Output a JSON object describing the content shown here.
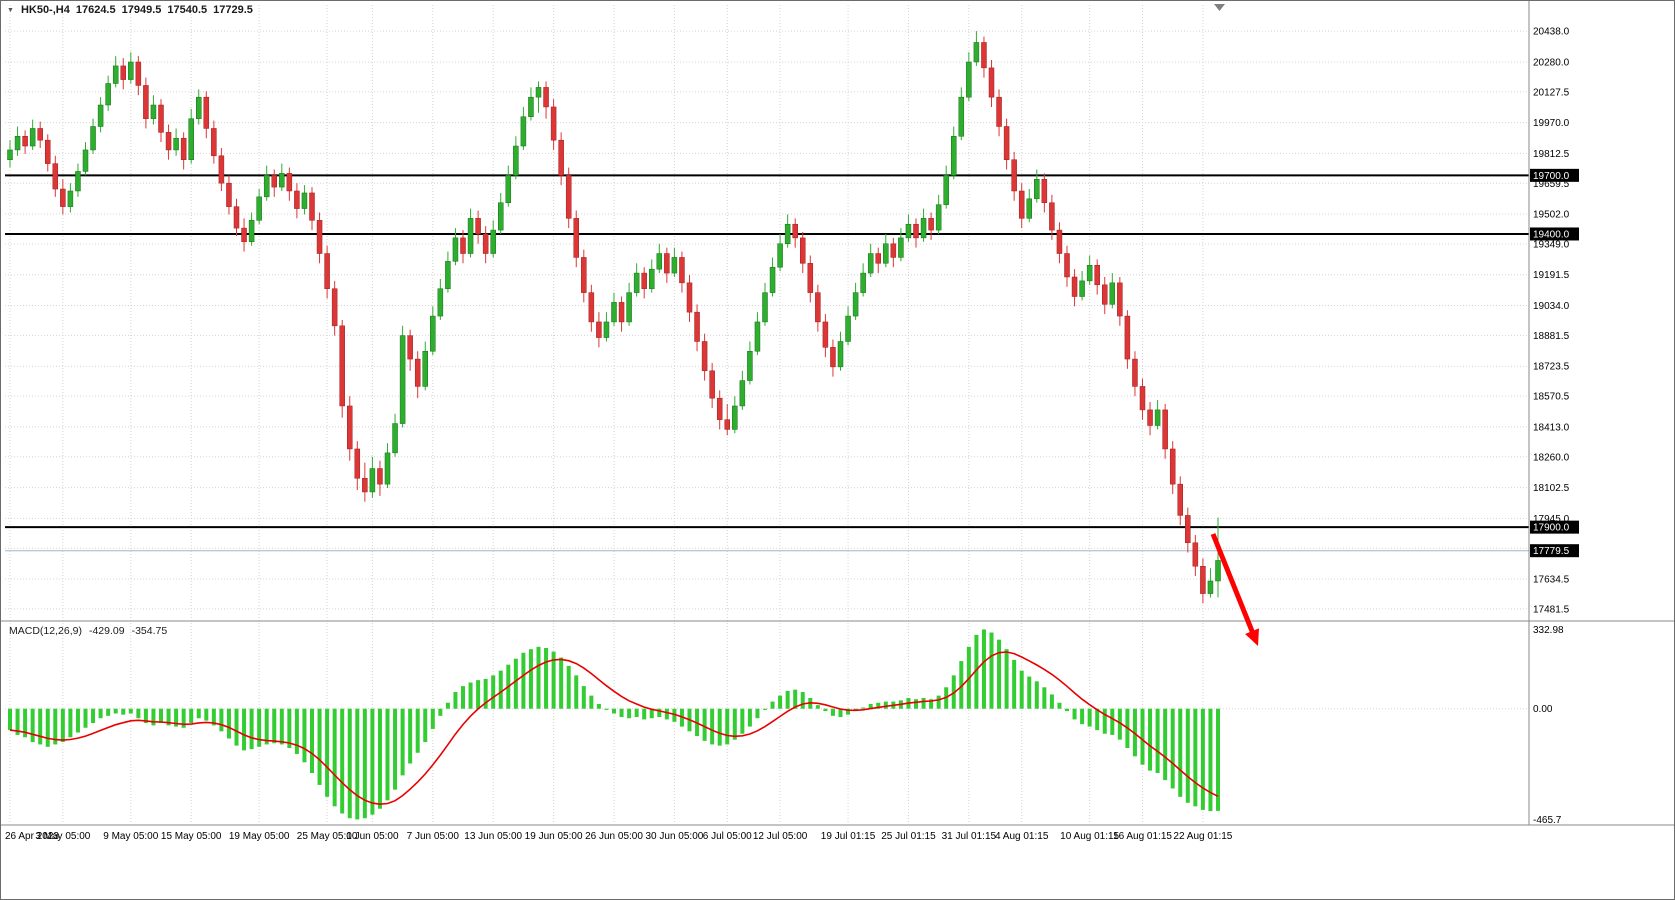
{
  "quote_bar": {
    "collapse_icon": "▼",
    "symbol": "HK50-,H4",
    "open": "17624.5",
    "high": "17949.5",
    "low": "17540.5",
    "close": "17729.5"
  },
  "macd_panel_label": {
    "name": "MACD(12,26,9)",
    "macd_value": "-429.09",
    "signal_value": "-354.75"
  },
  "colors": {
    "bull": "#2eae2e",
    "bear": "#dd3636",
    "bull_stroke": "#176e17",
    "bear_stroke": "#9c1f1f",
    "hline": "#000000",
    "bid_line": "#9fb6cc",
    "grid": "#d4d4d4",
    "macd_hist": "#33cc33",
    "macd_signal": "#e80000",
    "tag_bg": "#000000",
    "tag_fg": "#ffffff",
    "axis_text": "#000000",
    "panel_border": "#8a8a8a",
    "arrow": "#ff0000",
    "shift_marker": "#808080"
  },
  "chart_data": {
    "type": "candlestick+macd",
    "title": "HK50-,H4",
    "price_ylim": [
      17430,
      20500
    ],
    "macd_ylim": [
      -480,
      360
    ],
    "price_axis_ticks": [
      20438.0,
      20280.0,
      20127.5,
      19970.0,
      19812.5,
      19659.5,
      19502.0,
      19349.0,
      19191.5,
      19034.0,
      18881.5,
      18723.5,
      18570.5,
      18413.0,
      18260.0,
      18102.5,
      17945.0,
      17792.0,
      17634.5,
      17481.5
    ],
    "hlines": [
      19700.0,
      19400.0,
      17900.0
    ],
    "bid_line": 17779.5,
    "macd_axis": [
      {
        "v": 332.98,
        "label": "332.98"
      },
      {
        "v": 0,
        "label": "0.00"
      },
      {
        "v": -465.7,
        "label": "-465.7"
      }
    ],
    "x_ticks": [
      {
        "i": 0,
        "label": "26 Apr 2023"
      },
      {
        "i": 7,
        "label": "3 May 05:00"
      },
      {
        "i": 16,
        "label": "9 May 05:00"
      },
      {
        "i": 24,
        "label": "15 May 05:00"
      },
      {
        "i": 33,
        "label": "19 May 05:00"
      },
      {
        "i": 42,
        "label": "25 May 05:00"
      },
      {
        "i": 48,
        "label": "1 Jun 05:00"
      },
      {
        "i": 56,
        "label": "7 Jun 05:00"
      },
      {
        "i": 64,
        "label": "13 Jun 05:00"
      },
      {
        "i": 72,
        "label": "19 Jun 05:00"
      },
      {
        "i": 80,
        "label": "26 Jun 05:00"
      },
      {
        "i": 88,
        "label": "30 Jun 05:00"
      },
      {
        "i": 95,
        "label": "6 Jul 05:00"
      },
      {
        "i": 102,
        "label": "12 Jul 05:00"
      },
      {
        "i": 111,
        "label": "19 Jul 01:15"
      },
      {
        "i": 119,
        "label": "25 Jul 01:15"
      },
      {
        "i": 127,
        "label": "31 Jul 01:15"
      },
      {
        "i": 134,
        "label": "4 Aug 01:15"
      },
      {
        "i": 143,
        "label": "10 Aug 01:15"
      },
      {
        "i": 150,
        "label": "16 Aug 01:15"
      },
      {
        "i": 158,
        "label": "22 Aug 01:15"
      }
    ],
    "candles": [
      [
        19780,
        19880,
        19740,
        19830
      ],
      [
        19830,
        19950,
        19800,
        19900
      ],
      [
        19900,
        19930,
        19810,
        19850
      ],
      [
        19850,
        19985,
        19830,
        19940
      ],
      [
        19940,
        19975,
        19840,
        19880
      ],
      [
        19880,
        19910,
        19720,
        19760
      ],
      [
        19760,
        19800,
        19590,
        19630
      ],
      [
        19630,
        19680,
        19500,
        19540
      ],
      [
        19540,
        19660,
        19510,
        19620
      ],
      [
        19620,
        19760,
        19590,
        19720
      ],
      [
        19720,
        19870,
        19700,
        19830
      ],
      [
        19830,
        19990,
        19810,
        19950
      ],
      [
        19950,
        20100,
        19920,
        20060
      ],
      [
        20060,
        20210,
        20030,
        20170
      ],
      [
        20170,
        20310,
        20150,
        20260
      ],
      [
        20260,
        20300,
        20140,
        20190
      ],
      [
        20190,
        20330,
        20170,
        20280
      ],
      [
        20280,
        20310,
        20110,
        20160
      ],
      [
        20160,
        20200,
        19940,
        19990
      ],
      [
        19990,
        20110,
        19960,
        20060
      ],
      [
        20060,
        20090,
        19870,
        19920
      ],
      [
        19920,
        19960,
        19780,
        19830
      ],
      [
        19830,
        19940,
        19800,
        19890
      ],
      [
        19890,
        19920,
        19730,
        19780
      ],
      [
        19780,
        20040,
        19760,
        19990
      ],
      [
        19990,
        20140,
        19960,
        20100
      ],
      [
        20100,
        20130,
        19890,
        19940
      ],
      [
        19940,
        19980,
        19760,
        19800
      ],
      [
        19800,
        19840,
        19620,
        19660
      ],
      [
        19660,
        19700,
        19500,
        19540
      ],
      [
        19540,
        19580,
        19390,
        19430
      ],
      [
        19430,
        19480,
        19310,
        19360
      ],
      [
        19360,
        19510,
        19340,
        19470
      ],
      [
        19470,
        19630,
        19450,
        19590
      ],
      [
        19590,
        19750,
        19570,
        19700
      ],
      [
        19700,
        19730,
        19590,
        19640
      ],
      [
        19640,
        19760,
        19620,
        19710
      ],
      [
        19710,
        19740,
        19570,
        19620
      ],
      [
        19620,
        19660,
        19480,
        19530
      ],
      [
        19530,
        19650,
        19500,
        19610
      ],
      [
        19610,
        19640,
        19420,
        19470
      ],
      [
        19470,
        19510,
        19250,
        19300
      ],
      [
        19300,
        19340,
        19070,
        19120
      ],
      [
        19120,
        19160,
        18880,
        18930
      ],
      [
        18930,
        18960,
        18460,
        18520
      ],
      [
        18520,
        18570,
        18240,
        18300
      ],
      [
        18300,
        18340,
        18090,
        18150
      ],
      [
        18150,
        18230,
        18030,
        18080
      ],
      [
        18080,
        18260,
        18050,
        18200
      ],
      [
        18200,
        18240,
        18060,
        18120
      ],
      [
        18120,
        18330,
        18100,
        18280
      ],
      [
        18280,
        18480,
        18260,
        18430
      ],
      [
        18430,
        18930,
        18410,
        18880
      ],
      [
        18880,
        18910,
        18700,
        18760
      ],
      [
        18760,
        18800,
        18560,
        18620
      ],
      [
        18620,
        18850,
        18600,
        18800
      ],
      [
        18800,
        19030,
        18780,
        18980
      ],
      [
        18980,
        19170,
        18960,
        19120
      ],
      [
        19120,
        19310,
        19100,
        19260
      ],
      [
        19260,
        19430,
        19240,
        19380
      ],
      [
        19380,
        19420,
        19250,
        19300
      ],
      [
        19300,
        19530,
        19280,
        19480
      ],
      [
        19480,
        19520,
        19350,
        19400
      ],
      [
        19400,
        19440,
        19250,
        19300
      ],
      [
        19300,
        19470,
        19280,
        19420
      ],
      [
        19420,
        19610,
        19400,
        19560
      ],
      [
        19560,
        19750,
        19540,
        19700
      ],
      [
        19700,
        19900,
        19680,
        19850
      ],
      [
        19850,
        20050,
        19830,
        20000
      ],
      [
        20000,
        20150,
        19980,
        20100
      ],
      [
        20100,
        20180,
        20020,
        20150
      ],
      [
        20150,
        20180,
        19990,
        20050
      ],
      [
        20050,
        20090,
        19830,
        19880
      ],
      [
        19880,
        19920,
        19650,
        19700
      ],
      [
        19700,
        19740,
        19430,
        19480
      ],
      [
        19480,
        19520,
        19230,
        19280
      ],
      [
        19280,
        19320,
        19050,
        19100
      ],
      [
        19100,
        19140,
        18900,
        18950
      ],
      [
        18950,
        19000,
        18820,
        18870
      ],
      [
        18870,
        19000,
        18850,
        18950
      ],
      [
        18950,
        19100,
        18930,
        19050
      ],
      [
        19050,
        19080,
        18900,
        18950
      ],
      [
        18950,
        19150,
        18930,
        19100
      ],
      [
        19100,
        19250,
        19080,
        19200
      ],
      [
        19200,
        19230,
        19070,
        19120
      ],
      [
        19120,
        19270,
        19100,
        19220
      ],
      [
        19220,
        19350,
        19200,
        19300
      ],
      [
        19300,
        19330,
        19150,
        19200
      ],
      [
        19200,
        19330,
        19180,
        19280
      ],
      [
        19280,
        19310,
        19100,
        19150
      ],
      [
        19150,
        19190,
        18950,
        19000
      ],
      [
        19000,
        19040,
        18800,
        18850
      ],
      [
        18850,
        18890,
        18650,
        18700
      ],
      [
        18700,
        18740,
        18510,
        18560
      ],
      [
        18560,
        18600,
        18400,
        18450
      ],
      [
        18450,
        18530,
        18370,
        18400
      ],
      [
        18400,
        18570,
        18380,
        18520
      ],
      [
        18520,
        18700,
        18500,
        18650
      ],
      [
        18650,
        18850,
        18630,
        18800
      ],
      [
        18800,
        19000,
        18780,
        18950
      ],
      [
        18950,
        19150,
        18930,
        19100
      ],
      [
        19100,
        19280,
        19080,
        19230
      ],
      [
        19230,
        19400,
        19210,
        19350
      ],
      [
        19350,
        19500,
        19330,
        19450
      ],
      [
        19450,
        19480,
        19330,
        19380
      ],
      [
        19380,
        19410,
        19200,
        19250
      ],
      [
        19250,
        19290,
        19050,
        19100
      ],
      [
        19100,
        19140,
        18900,
        18950
      ],
      [
        18950,
        18990,
        18770,
        18820
      ],
      [
        18820,
        18860,
        18670,
        18720
      ],
      [
        18720,
        18900,
        18700,
        18850
      ],
      [
        18850,
        19030,
        18830,
        18980
      ],
      [
        18980,
        19150,
        18960,
        19100
      ],
      [
        19100,
        19250,
        19080,
        19200
      ],
      [
        19200,
        19350,
        19180,
        19300
      ],
      [
        19300,
        19330,
        19200,
        19250
      ],
      [
        19250,
        19400,
        19230,
        19350
      ],
      [
        19350,
        19380,
        19230,
        19280
      ],
      [
        19280,
        19430,
        19260,
        19380
      ],
      [
        19380,
        19500,
        19360,
        19450
      ],
      [
        19450,
        19480,
        19330,
        19380
      ],
      [
        19380,
        19530,
        19360,
        19480
      ],
      [
        19480,
        19510,
        19370,
        19420
      ],
      [
        19420,
        19600,
        19400,
        19550
      ],
      [
        19550,
        19750,
        19530,
        19700
      ],
      [
        19700,
        19950,
        19680,
        19900
      ],
      [
        19900,
        20150,
        19880,
        20100
      ],
      [
        20100,
        20330,
        20080,
        20280
      ],
      [
        20280,
        20438,
        20260,
        20380
      ],
      [
        20380,
        20410,
        20200,
        20250
      ],
      [
        20250,
        20290,
        20050,
        20100
      ],
      [
        20100,
        20140,
        19900,
        19950
      ],
      [
        19950,
        19990,
        19730,
        19780
      ],
      [
        19780,
        19820,
        19570,
        19620
      ],
      [
        19620,
        19660,
        19430,
        19480
      ],
      [
        19480,
        19630,
        19460,
        19580
      ],
      [
        19580,
        19730,
        19560,
        19680
      ],
      [
        19680,
        19710,
        19510,
        19560
      ],
      [
        19560,
        19600,
        19370,
        19420
      ],
      [
        19420,
        19460,
        19250,
        19300
      ],
      [
        19300,
        19340,
        19130,
        19180
      ],
      [
        19180,
        19220,
        19030,
        19080
      ],
      [
        19080,
        19210,
        19060,
        19160
      ],
      [
        19160,
        19290,
        19140,
        19240
      ],
      [
        19240,
        19270,
        19090,
        19140
      ],
      [
        19140,
        19180,
        18990,
        19040
      ],
      [
        19040,
        19200,
        19020,
        19150
      ],
      [
        19150,
        19180,
        18930,
        18980
      ],
      [
        18980,
        19010,
        18710,
        18760
      ],
      [
        18760,
        18800,
        18570,
        18620
      ],
      [
        18620,
        18660,
        18450,
        18500
      ],
      [
        18500,
        18540,
        18370,
        18420
      ],
      [
        18420,
        18550,
        18400,
        18500
      ],
      [
        18500,
        18530,
        18250,
        18300
      ],
      [
        18300,
        18340,
        18070,
        18120
      ],
      [
        18120,
        18160,
        17910,
        17960
      ],
      [
        17960,
        18000,
        17770,
        17820
      ],
      [
        17820,
        17860,
        17650,
        17700
      ],
      [
        17700,
        17740,
        17510,
        17560
      ],
      [
        17560,
        17690,
        17540,
        17624.5
      ],
      [
        17624.5,
        17949.5,
        17540.5,
        17729.5
      ]
    ],
    "macd": [
      -90,
      -110,
      -120,
      -140,
      -150,
      -160,
      -150,
      -140,
      -120,
      -100,
      -80,
      -60,
      -40,
      -30,
      -20,
      -25,
      -20,
      -40,
      -60,
      -70,
      -60,
      -70,
      -75,
      -80,
      -60,
      -40,
      -50,
      -70,
      -95,
      -125,
      -155,
      -175,
      -170,
      -160,
      -150,
      -145,
      -150,
      -165,
      -190,
      -225,
      -270,
      -320,
      -370,
      -410,
      -440,
      -460,
      -465,
      -460,
      -445,
      -420,
      -385,
      -340,
      -280,
      -230,
      -185,
      -140,
      -85,
      -30,
      25,
      70,
      95,
      110,
      120,
      125,
      140,
      160,
      185,
      210,
      235,
      250,
      260,
      255,
      240,
      215,
      180,
      140,
      95,
      55,
      20,
      -5,
      -20,
      -35,
      -40,
      -35,
      -45,
      -40,
      -35,
      -45,
      -55,
      -75,
      -95,
      -115,
      -135,
      -150,
      -155,
      -150,
      -130,
      -105,
      -75,
      -40,
      -5,
      30,
      55,
      75,
      80,
      70,
      45,
      15,
      -10,
      -30,
      -35,
      -25,
      -10,
      5,
      20,
      25,
      30,
      30,
      35,
      45,
      40,
      45,
      40,
      55,
      90,
      140,
      200,
      260,
      310,
      333,
      320,
      290,
      250,
      205,
      160,
      135,
      115,
      90,
      60,
      25,
      -10,
      -45,
      -65,
      -75,
      -90,
      -105,
      -110,
      -130,
      -165,
      -200,
      -235,
      -260,
      -270,
      -300,
      -335,
      -370,
      -395,
      -410,
      -425,
      -430,
      -429.09
    ]
  },
  "annotations": {
    "trend_arrow": {
      "direction": "down-right",
      "color": "#ff0000"
    }
  }
}
